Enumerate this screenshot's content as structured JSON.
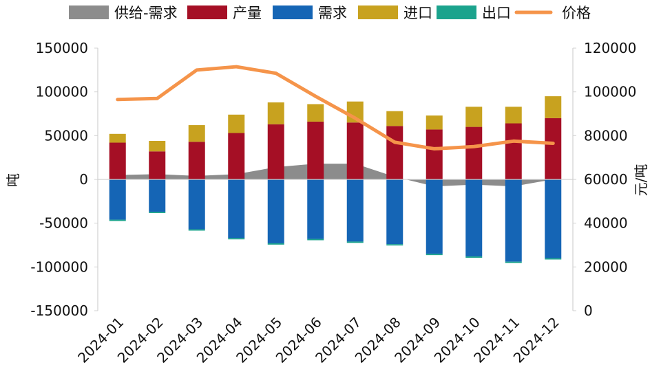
{
  "chart_data": {
    "type": "bar",
    "categories": [
      "2024-01",
      "2024-02",
      "2024-03",
      "2024-04",
      "2024-05",
      "2024-06",
      "2024-07",
      "2024-08",
      "2024-09",
      "2024-10",
      "2024-11",
      "2024-12"
    ],
    "ylabel": "吨",
    "y2label": "元/吨",
    "ylim": [
      -150000,
      150000
    ],
    "y2lim": [
      0,
      120000
    ],
    "y_ticks": [
      "150000",
      "100000",
      "50000",
      "0",
      "-50000",
      "-100000",
      "-150000"
    ],
    "y2_ticks": [
      "120000",
      "100000",
      "80000",
      "60000",
      "40000",
      "20000",
      "0"
    ],
    "series": [
      {
        "name": "供给-需求",
        "kind": "area",
        "color": "#8c8c8c",
        "values": [
          5000,
          6000,
          4000,
          6000,
          14000,
          18000,
          18000,
          3000,
          -8000,
          -6000,
          -8000,
          0
        ]
      },
      {
        "name": "产量",
        "kind": "bar",
        "color": "#a50f25",
        "values": [
          42000,
          32000,
          43000,
          53000,
          63000,
          66000,
          65000,
          61000,
          57000,
          60000,
          64000,
          70000
        ]
      },
      {
        "name": "需求",
        "kind": "bar",
        "color": "#1565b5",
        "values": [
          -46000,
          -37000,
          -57000,
          -67000,
          -73000,
          -68000,
          -71000,
          -74000,
          -85000,
          -88000,
          -94000,
          -90000
        ]
      },
      {
        "name": "进口",
        "kind": "bar",
        "color": "#c8a21f",
        "values": [
          10000,
          12000,
          19000,
          21000,
          25000,
          20000,
          24000,
          17000,
          16000,
          23000,
          19000,
          25000
        ]
      },
      {
        "name": "出口",
        "kind": "bar",
        "color": "#1ba38d",
        "values": [
          -1500,
          -1500,
          -1500,
          -1500,
          -1500,
          -1500,
          -1500,
          -1500,
          -1500,
          -1500,
          -1500,
          -1500
        ]
      },
      {
        "name": "价格",
        "kind": "line",
        "axis": "right",
        "color": "#f5944a",
        "values": [
          96500,
          97000,
          110000,
          111500,
          108500,
          98000,
          88000,
          77000,
          74000,
          75000,
          77500,
          76500
        ]
      }
    ]
  }
}
